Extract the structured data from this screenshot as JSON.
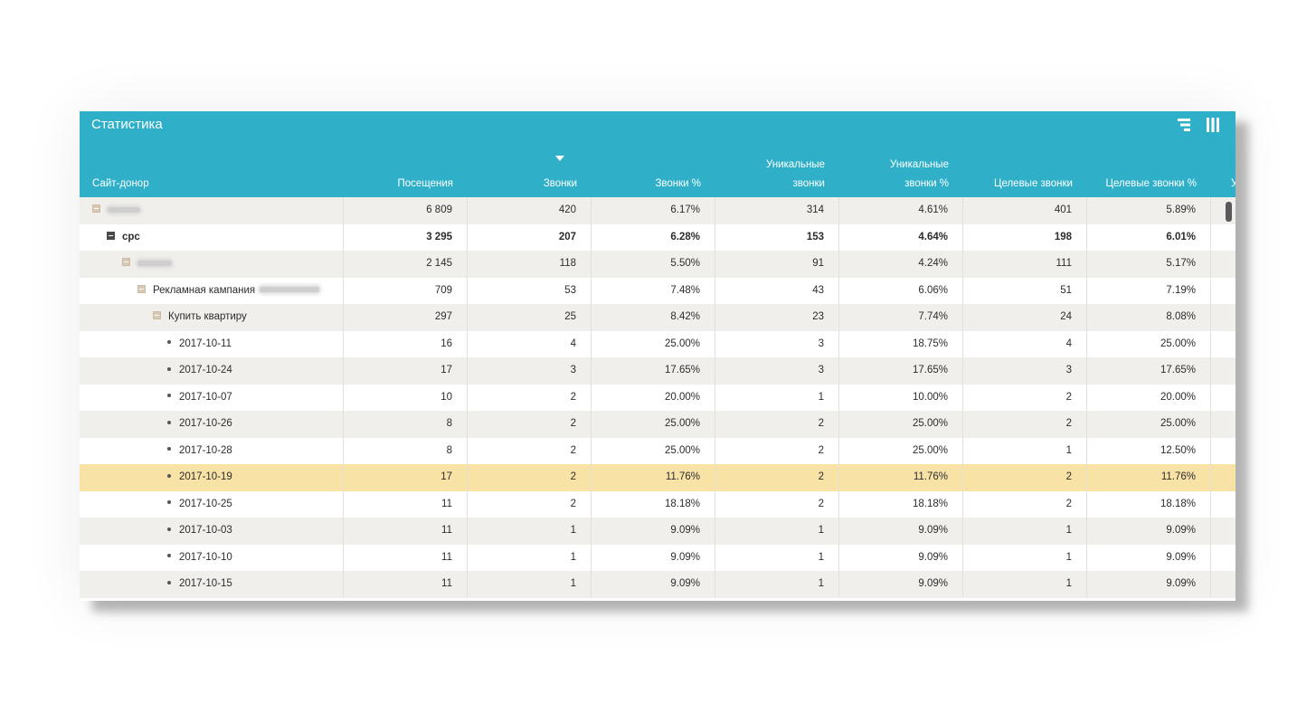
{
  "panel": {
    "title": "Статистика"
  },
  "header_icons": [
    "filter-icon",
    "columns-icon"
  ],
  "columns": [
    {
      "lines": [
        "",
        "Сайт-донор"
      ]
    },
    {
      "lines": [
        "",
        "Посещения"
      ]
    },
    {
      "lines": [
        "",
        "Звонки"
      ],
      "sorted": "desc"
    },
    {
      "lines": [
        "",
        "Звонки %"
      ]
    },
    {
      "lines": [
        "Уникальные",
        "звонки"
      ]
    },
    {
      "lines": [
        "Уникальные",
        "звонки %"
      ]
    },
    {
      "lines": [
        "",
        "Целевые звонки"
      ]
    },
    {
      "lines": [
        "",
        "Целевые звонки %"
      ]
    },
    {
      "lines": [
        "",
        "У"
      ]
    }
  ],
  "rows": [
    {
      "level": 0,
      "toggle": "collapse",
      "label": "",
      "blurred": true,
      "values": [
        "6 809",
        "420",
        "6.17%",
        "314",
        "4.61%",
        "401",
        "5.89%"
      ]
    },
    {
      "level": 1,
      "toggle": "collapse-dark",
      "label": "cpc",
      "bold": true,
      "values": [
        "3 295",
        "207",
        "6.28%",
        "153",
        "4.64%",
        "198",
        "6.01%"
      ]
    },
    {
      "level": 2,
      "toggle": "collapse",
      "label": "",
      "blurred": true,
      "values": [
        "2 145",
        "118",
        "5.50%",
        "91",
        "4.24%",
        "111",
        "5.17%"
      ]
    },
    {
      "level": 3,
      "toggle": "collapse",
      "label": "Рекламная кампания",
      "blurred_suffix": true,
      "values": [
        "709",
        "53",
        "7.48%",
        "43",
        "6.06%",
        "51",
        "7.19%"
      ]
    },
    {
      "level": 4,
      "toggle": "collapse",
      "label": "Купить квартиру",
      "values": [
        "297",
        "25",
        "8.42%",
        "23",
        "7.74%",
        "24",
        "8.08%"
      ]
    },
    {
      "level": 5,
      "toggle": "leaf",
      "label": "2017-10-11",
      "values": [
        "16",
        "4",
        "25.00%",
        "3",
        "18.75%",
        "4",
        "25.00%"
      ]
    },
    {
      "level": 5,
      "toggle": "leaf",
      "label": "2017-10-24",
      "values": [
        "17",
        "3",
        "17.65%",
        "3",
        "17.65%",
        "3",
        "17.65%"
      ]
    },
    {
      "level": 5,
      "toggle": "leaf",
      "label": "2017-10-07",
      "values": [
        "10",
        "2",
        "20.00%",
        "1",
        "10.00%",
        "2",
        "20.00%"
      ]
    },
    {
      "level": 5,
      "toggle": "leaf",
      "label": "2017-10-26",
      "values": [
        "8",
        "2",
        "25.00%",
        "2",
        "25.00%",
        "2",
        "25.00%"
      ]
    },
    {
      "level": 5,
      "toggle": "leaf",
      "label": "2017-10-28",
      "values": [
        "8",
        "2",
        "25.00%",
        "2",
        "25.00%",
        "1",
        "12.50%"
      ]
    },
    {
      "level": 5,
      "toggle": "leaf",
      "label": "2017-10-19",
      "highlighted": true,
      "values": [
        "17",
        "2",
        "11.76%",
        "2",
        "11.76%",
        "2",
        "11.76%"
      ]
    },
    {
      "level": 5,
      "toggle": "leaf",
      "label": "2017-10-25",
      "values": [
        "11",
        "2",
        "18.18%",
        "2",
        "18.18%",
        "2",
        "18.18%"
      ]
    },
    {
      "level": 5,
      "toggle": "leaf",
      "label": "2017-10-03",
      "values": [
        "11",
        "1",
        "9.09%",
        "1",
        "9.09%",
        "1",
        "9.09%"
      ]
    },
    {
      "level": 5,
      "toggle": "leaf",
      "label": "2017-10-10",
      "values": [
        "11",
        "1",
        "9.09%",
        "1",
        "9.09%",
        "1",
        "9.09%"
      ]
    },
    {
      "level": 5,
      "toggle": "leaf",
      "label": "2017-10-15",
      "values": [
        "11",
        "1",
        "9.09%",
        "1",
        "9.09%",
        "1",
        "9.09%"
      ]
    }
  ],
  "colors": {
    "header": "#2fb0c8",
    "row_alt": "#f1efeb",
    "highlight": "#f8e2a6",
    "toggle": "#d9c8b4"
  }
}
